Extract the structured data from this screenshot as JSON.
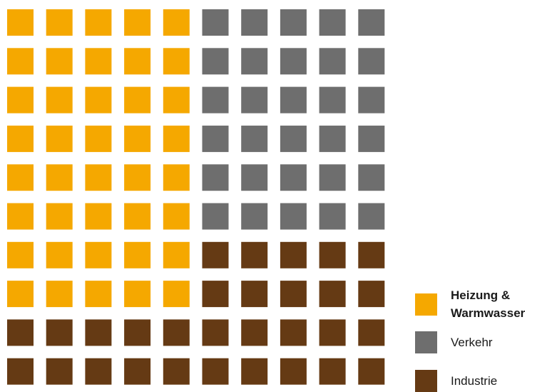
{
  "chart_data": {
    "type": "waffle",
    "rows": 10,
    "cols": 10,
    "categories": [
      {
        "name": "Heizung & Warmwasser",
        "value": 40,
        "color": "#f5a800"
      },
      {
        "name": "Verkehr",
        "value": 30,
        "color": "#6e6e6e"
      },
      {
        "name": "Industrie",
        "value": 30,
        "color": "#653a14"
      }
    ]
  },
  "legend": {
    "heating_label": "Heizung & Warmwasser",
    "traffic_label": "Verkehr",
    "industry_label": "Industrie"
  }
}
